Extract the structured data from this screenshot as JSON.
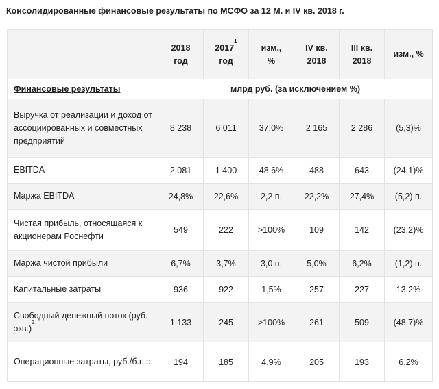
{
  "title": "Консолидированные финансовые результаты по МСФО за 12 М. и IV кв. 2018 г.",
  "columns": [
    {
      "line1": "2018",
      "line2": "год",
      "sup": ""
    },
    {
      "line1": "2017",
      "line2": "год",
      "sup": "1"
    },
    {
      "line1": "изм.,",
      "line2": "%",
      "sup": ""
    },
    {
      "line1": "IV кв.",
      "line2": "2018",
      "sup": ""
    },
    {
      "line1": "III кв.",
      "line2": "2018",
      "sup": ""
    },
    {
      "line1": "изм., %",
      "line2": "",
      "sup": ""
    }
  ],
  "section_label": "Финансовые результаты",
  "units_label": "млрд руб. (за исключением %)",
  "rows": [
    {
      "label": "Выручка от реализации и доход от ассоциированных и совместных предприятий",
      "label_sup": "",
      "values": [
        "8 238",
        "6 011",
        "37,0%",
        "2 165",
        "2 286",
        "(5,3)%"
      ]
    },
    {
      "label": "EBITDA",
      "label_sup": "",
      "values": [
        "2 081",
        "1 400",
        "48,6%",
        "488",
        "643",
        "(24,1)%"
      ]
    },
    {
      "label": "Маржа EBITDA",
      "label_sup": "",
      "values": [
        "24,8%",
        "22,6%",
        "2,2 п.",
        "22,2%",
        "27,4%",
        "(5,2) п."
      ]
    },
    {
      "label": "Чистая прибыль, относящаяся к акционерам Роснефти",
      "label_sup": "",
      "values": [
        "549",
        "222",
        ">100%",
        "109",
        "142",
        "(23,2)%"
      ]
    },
    {
      "label": "Маржа чистой прибыли",
      "label_sup": "",
      "values": [
        "6,7%",
        "3,7%",
        "3,0 п.",
        "5,0%",
        "6,2%",
        "(1,2) п."
      ]
    },
    {
      "label": "Капитальные затраты",
      "label_sup": "",
      "values": [
        "936",
        "922",
        "1,5%",
        "257",
        "227",
        "13,2%"
      ]
    },
    {
      "label": "Свободный денежный поток (руб. экв.)",
      "label_sup": "2",
      "values": [
        "1 133",
        "245",
        ">100%",
        "261",
        "509",
        "(48,7)%"
      ]
    },
    {
      "label": "Операционные затраты, руб./б.н.э.",
      "label_sup": "",
      "values": [
        "194",
        "185",
        "4,9%",
        "205",
        "193",
        "6,2%"
      ]
    }
  ]
}
